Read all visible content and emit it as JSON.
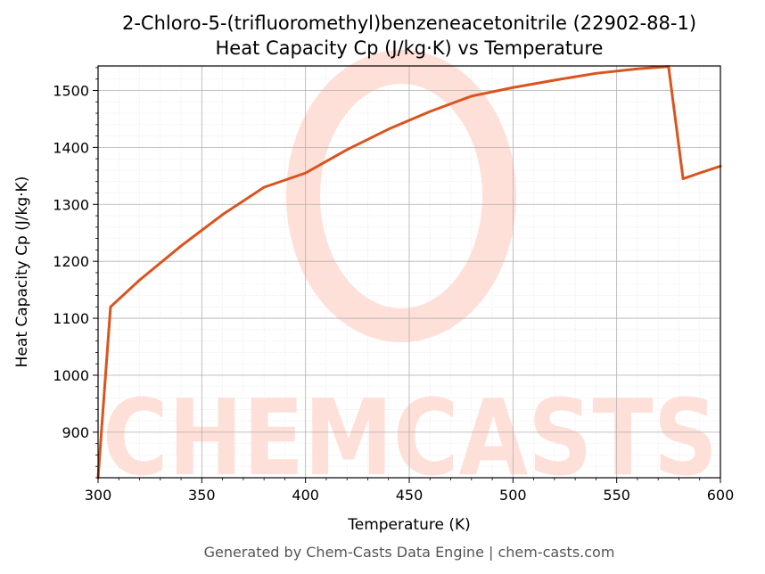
{
  "chart_data": {
    "type": "line",
    "title_line1": "2-Chloro-5-(trifluoromethyl)benzeneacetonitrile (22902-88-1)",
    "title_line2": "Heat Capacity Cp (J/kg·K) vs Temperature",
    "xlabel": "Temperature (K)",
    "ylabel": "Heat Capacity Cp (J/kg·K)",
    "xlim": [
      300,
      600
    ],
    "ylim": [
      820,
      1543
    ],
    "xticks": [
      300,
      350,
      400,
      450,
      500,
      550,
      600
    ],
    "yticks": [
      900,
      1000,
      1100,
      1200,
      1300,
      1400,
      1500
    ],
    "grid": true,
    "series": [
      {
        "color": "#d9541e",
        "x": [
          300,
          306,
          320,
          340,
          360,
          380,
          400,
          420,
          440,
          460,
          480,
          500,
          520,
          540,
          560,
          575,
          582,
          590,
          600
        ],
        "y": [
          820,
          1120,
          1167,
          1227,
          1282,
          1330,
          1355,
          1396,
          1432,
          1463,
          1490,
          1505,
          1518,
          1530,
          1538,
          1542,
          1345,
          1355,
          1367
        ]
      }
    ]
  },
  "watermark": {
    "text": "CHEMCASTS",
    "color": "#ffe0d8"
  },
  "footer": "Generated by Chem-Casts Data Engine | chem-casts.com"
}
